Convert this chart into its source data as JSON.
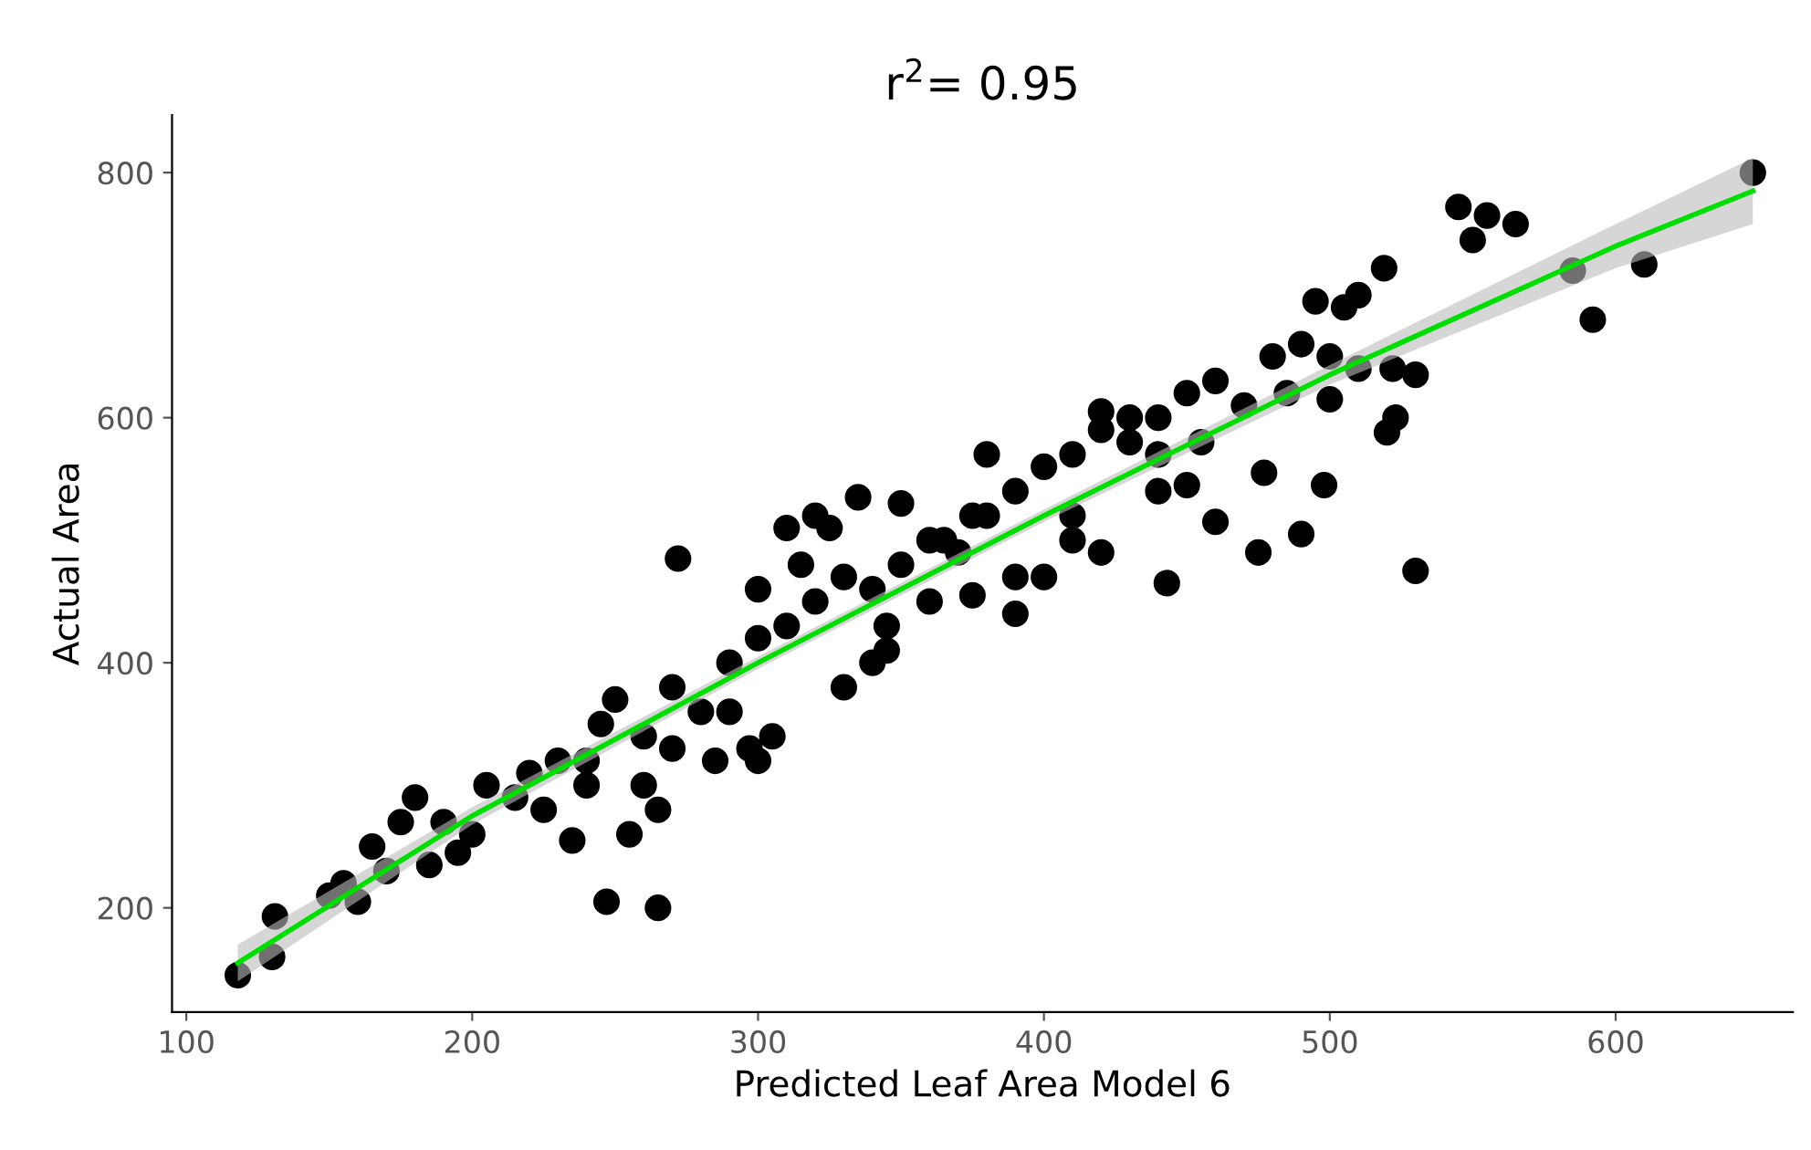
{
  "chart_data": {
    "type": "scatter",
    "title": "r$^{2}$= 0.95",
    "xlabel": "Predicted Leaf Area Model 6",
    "ylabel": "Actual Area",
    "xlim": [
      95,
      662
    ],
    "ylim": [
      115,
      847
    ],
    "xticks": [
      100,
      200,
      300,
      400,
      500,
      600
    ],
    "yticks": [
      200,
      400,
      600,
      800
    ],
    "grid": false,
    "legend": false,
    "series": [
      {
        "marker": "circle",
        "color": "#000000",
        "x": [
          118,
          130,
          131,
          247,
          265,
          272,
          530,
          545,
          555,
          565,
          550,
          585,
          592,
          610,
          648,
          519,
          510,
          505,
          495,
          475,
          490,
          498,
          477,
          520,
          523,
          530,
          522,
          460,
          450,
          440,
          440,
          443,
          430,
          420,
          410,
          390,
          390,
          380,
          375,
          365,
          360,
          345,
          340,
          325,
          320,
          310,
          300,
          297,
          305,
          300,
          285,
          270,
          260,
          235,
          240,
          225,
          215,
          200,
          195,
          185,
          180,
          170,
          160,
          155,
          150,
          165,
          175,
          190,
          205,
          220,
          230,
          245,
          250,
          260,
          270,
          280,
          290,
          300,
          310,
          320,
          330,
          340,
          350,
          360,
          370,
          380,
          390,
          400,
          410,
          420,
          430,
          440,
          450,
          460,
          470,
          480,
          490,
          500,
          510,
          420,
          400,
          350,
          335,
          315,
          265,
          255,
          240,
          290,
          330,
          345,
          375,
          410,
          455,
          485,
          500
        ],
        "values": [
          145,
          160,
          193,
          205,
          200,
          485,
          475,
          772,
          765,
          758,
          745,
          720,
          680,
          725,
          800,
          722,
          700,
          690,
          695,
          490,
          505,
          545,
          555,
          588,
          600,
          635,
          640,
          515,
          545,
          540,
          600,
          465,
          600,
          490,
          500,
          440,
          470,
          570,
          520,
          500,
          450,
          430,
          400,
          510,
          520,
          510,
          460,
          330,
          340,
          320,
          320,
          330,
          300,
          255,
          300,
          280,
          290,
          260,
          245,
          235,
          290,
          230,
          205,
          220,
          210,
          250,
          270,
          270,
          300,
          310,
          320,
          350,
          370,
          340,
          380,
          360,
          400,
          420,
          430,
          450,
          470,
          460,
          480,
          500,
          490,
          520,
          540,
          560,
          570,
          590,
          580,
          570,
          620,
          630,
          610,
          650,
          660,
          650,
          640,
          605,
          470,
          530,
          535,
          480,
          280,
          260,
          320,
          360,
          380,
          410,
          455,
          520,
          580,
          620,
          615
        ]
      },
      {
        "type": "line",
        "color": "#00dd00",
        "x": [
          118,
          200,
          300,
          400,
          500,
          600,
          648
        ],
        "values": [
          155,
          275,
          400,
          520,
          635,
          740,
          785
        ],
        "lower": [
          140,
          268,
          395,
          515,
          627,
          722,
          758
        ],
        "upper": [
          170,
          282,
          405,
          525,
          643,
          758,
          812
        ]
      }
    ]
  }
}
